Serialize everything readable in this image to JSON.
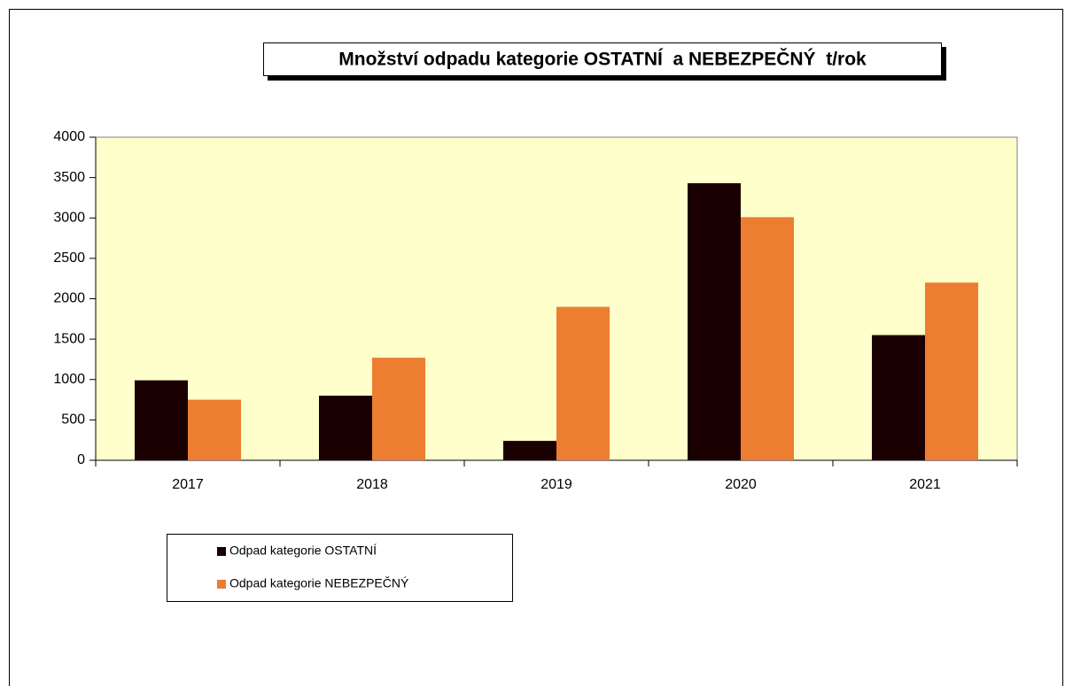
{
  "chart_data": {
    "type": "bar",
    "title": "Množství odpadu kategorie OSTATNÍ  a NEBEZPEČNÝ  t/rok",
    "categories": [
      "2017",
      "2018",
      "2019",
      "2020",
      "2021"
    ],
    "series": [
      {
        "name": "Odpad kategorie OSTATNÍ",
        "color": "#1a0000",
        "values": [
          990,
          800,
          240,
          3430,
          1550
        ]
      },
      {
        "name": "Odpad kategorie NEBEZPEČNÝ",
        "color": "#ed7d31",
        "values": [
          750,
          1270,
          1900,
          3010,
          2200
        ]
      }
    ],
    "ylim": [
      0,
      4000
    ],
    "yticks": [
      0,
      500,
      1000,
      1500,
      2000,
      2500,
      3000,
      3500,
      4000
    ],
    "plot_background": "#ffffcc",
    "legend": "bottom-left"
  }
}
